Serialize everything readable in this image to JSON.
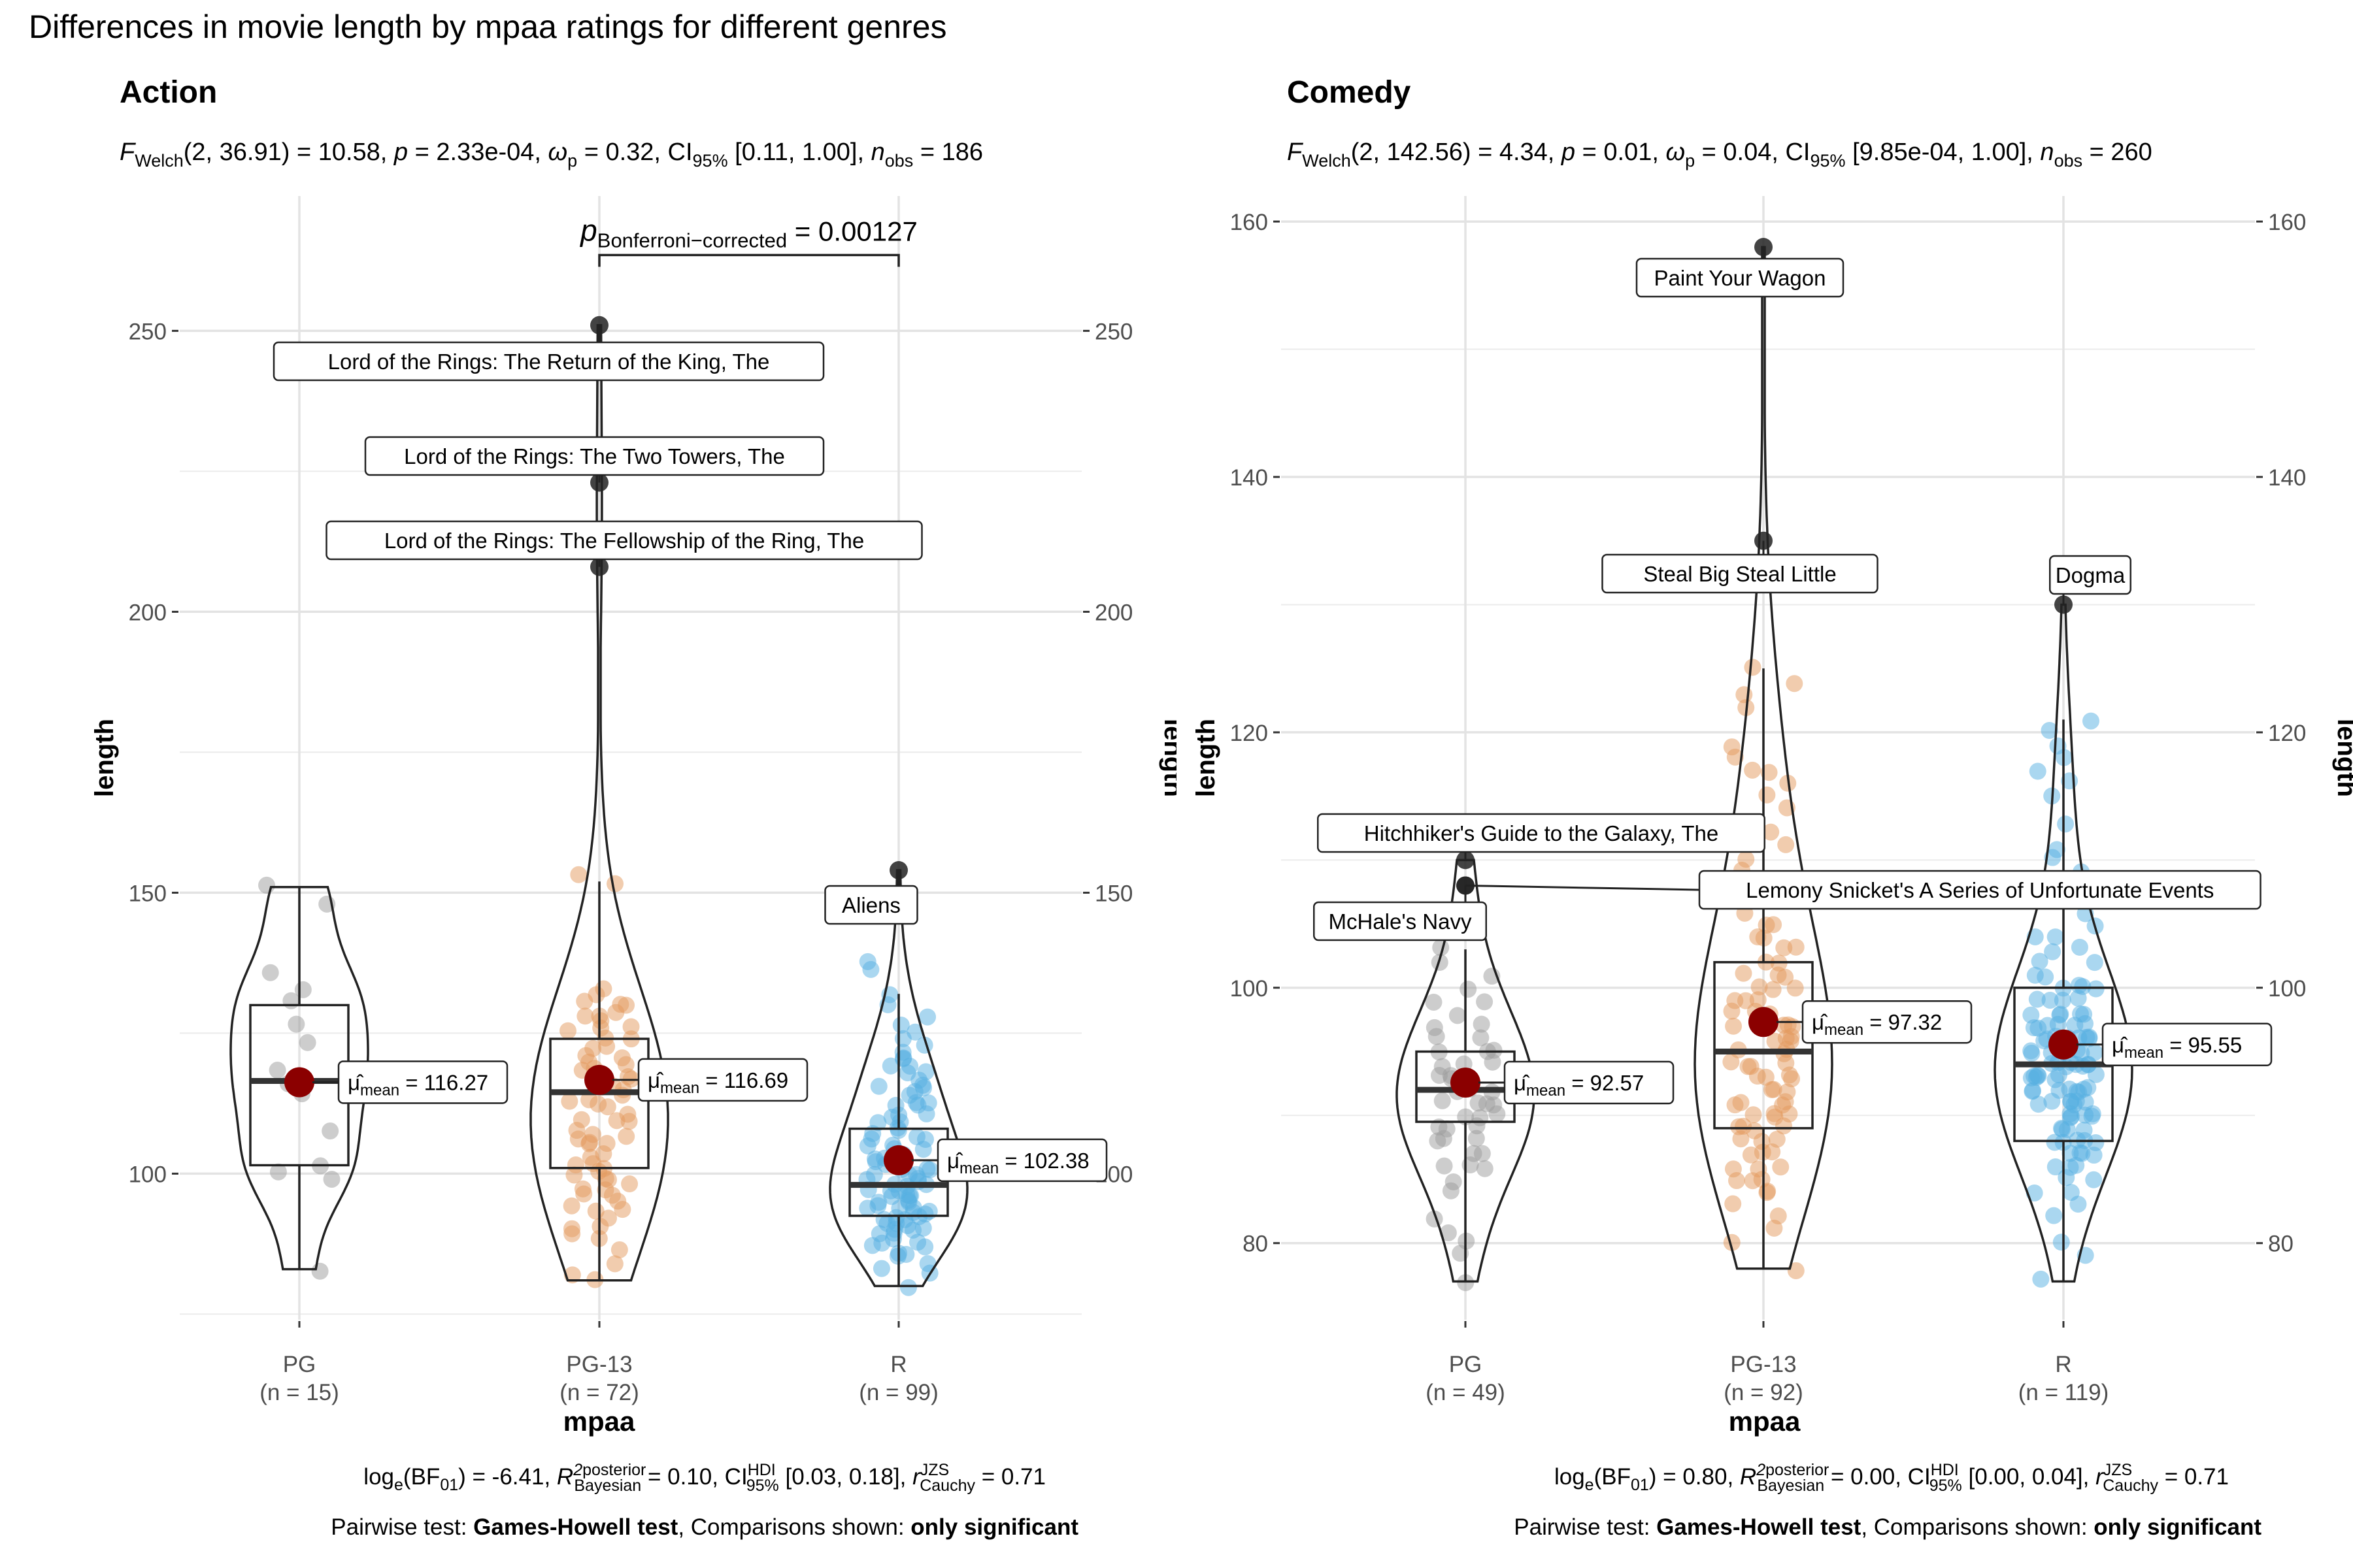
{
  "title": "Differences in movie length by mpaa ratings for different genres",
  "colors": {
    "PG": "#9b9b9b",
    "PG-13": "#e39a5e",
    "R": "#56b0e2",
    "mean": "#8b0000"
  },
  "chart_data": [
    {
      "type": "violin-box",
      "genre": "Action",
      "subtitle": {
        "lead": "F",
        "lead_sub": "Welch",
        "args": "(2, 36.91) = 10.58, ",
        "p_label": "p",
        "p_value": " = 2.33e-04, ",
        "omega": "ω",
        "omega_sub": "p",
        "omega_value": " = 0.32, CI",
        "ci_sub": "95%",
        "ci_value": " [0.11, 1.00], ",
        "nobs": "n",
        "nobs_sub": "obs",
        "nobs_value": " = 186"
      },
      "xlabel": "mpaa",
      "ylabel": "length",
      "ylim": [
        74,
        274
      ],
      "yticks": [
        100,
        150,
        200,
        250
      ],
      "groups": [
        {
          "name": "PG",
          "n_label": "(n = 15)",
          "mean": 116.27,
          "mean_label": "116.27",
          "q1": 101.5,
          "median": 116.5,
          "q3": 130,
          "whisker_low": 83,
          "whisker_high": 151,
          "violin_min": 83,
          "violin_max": 151,
          "points": [
            151,
            148,
            136,
            133,
            131,
            127,
            123,
            118,
            116,
            114,
            108,
            101,
            100,
            99,
            83
          ]
        },
        {
          "name": "PG-13",
          "n_label": "(n = 72)",
          "mean": 116.69,
          "mean_label": "116.69",
          "q1": 101,
          "median": 114.5,
          "q3": 124,
          "whisker_low": 81,
          "whisker_high": 152,
          "violin_min": 81,
          "violin_max": 251,
          "points": [
            153,
            152,
            133,
            132,
            131,
            130,
            129,
            128,
            127,
            126,
            125,
            124,
            123,
            122,
            121,
            120,
            119,
            118,
            117,
            116,
            115,
            114,
            113,
            112,
            111,
            110,
            109,
            108,
            107,
            106,
            105,
            104,
            103,
            102,
            101,
            100,
            99,
            98,
            97,
            96,
            95,
            94,
            92,
            90,
            88,
            86,
            84,
            82,
            81,
            126,
            119,
            112,
            106,
            100,
            94,
            130,
            121,
            113,
            105,
            97,
            91,
            128,
            117,
            109,
            102,
            96,
            89,
            124,
            115,
            107,
            99,
            93
          ]
        },
        {
          "name": "R",
          "n_label": "(n = 99)",
          "mean": 102.38,
          "mean_label": "102.38",
          "q1": 92.5,
          "median": 98,
          "q3": 108,
          "whisker_low": 80,
          "whisker_high": 132,
          "violin_min": 80,
          "violin_max": 154,
          "points": [
            138,
            136,
            132,
            130,
            128,
            126,
            124,
            122,
            121,
            120,
            119,
            118,
            117,
            116,
            115,
            114,
            113,
            112,
            111,
            110,
            109,
            108,
            107,
            106,
            105,
            104,
            103,
            102,
            101,
            100,
            99,
            98,
            97,
            96,
            95,
            94,
            93,
            92,
            91,
            90,
            89,
            88,
            87,
            86,
            85,
            84,
            83,
            82,
            80,
            125,
            118,
            110,
            104,
            100,
            97,
            95,
            93,
            91,
            89,
            87,
            123,
            115,
            108,
            103,
            99,
            96,
            94,
            92,
            90,
            88,
            86,
            119,
            112,
            106,
            102,
            98,
            96,
            94,
            92,
            90,
            88,
            116,
            109,
            105,
            101,
            99,
            97,
            95,
            93,
            91,
            113,
            107,
            103,
            100,
            98,
            96,
            94,
            92,
            101
          ]
        }
      ],
      "outliers": [
        {
          "group": "PG-13",
          "y": 251,
          "label": "Lord of the Rings: The Return of the King, The"
        },
        {
          "group": "PG-13",
          "y": 223,
          "label": "Lord of the Rings: The Two Towers, The"
        },
        {
          "group": "PG-13",
          "y": 208,
          "label": "Lord of the Rings: The Fellowship of the Ring, The"
        },
        {
          "group": "R",
          "y": 154,
          "label": "Aliens"
        }
      ],
      "pairwise": {
        "from": "PG-13",
        "to": "R",
        "y": 265,
        "label_p": "p",
        "label_sub": "Bonferroni−corrected",
        "label_value": " = 0.00127"
      },
      "footer": {
        "bf_lead": "log",
        "bf_lead_sub": "e",
        "bf_text": "(BF",
        "bf_sub": "01",
        "bf_value": ") = -6.41, ",
        "r2": "R",
        "r2_sup": "2",
        "r2_sup_text": "posterior",
        "r2_sub": "Bayesian",
        "r2_value": " = 0.10, CI",
        "ci_sup": "HDI",
        "ci_sub": "95%",
        "ci_value": " [0.03, 0.18], ",
        "r": "r",
        "r_sup": "JZS",
        "r_sub": "Cauchy",
        "r_value": " = 0.71",
        "pairwise_prefix": "Pairwise test: ",
        "pairwise_test": "Games-Howell test",
        "pairwise_mid": ", Comparisons shown: ",
        "pairwise_shown": "only significant"
      }
    },
    {
      "type": "violin-box",
      "genre": "Comedy",
      "subtitle": {
        "lead": "F",
        "lead_sub": "Welch",
        "args": "(2, 142.56) = 4.34, ",
        "p_label": "p",
        "p_value": " = 0.01, ",
        "omega": "ω",
        "omega_sub": "p",
        "omega_value": " = 0.04, CI",
        "ci_sub": "95%",
        "ci_value": " [9.85e-04, 1.00], ",
        "nobs": "n",
        "nobs_sub": "obs",
        "nobs_value": " = 260"
      },
      "xlabel": "mpaa",
      "ylabel": "length",
      "ylim": [
        74,
        162
      ],
      "yticks": [
        80,
        100,
        120,
        140,
        160
      ],
      "groups": [
        {
          "name": "PG",
          "n_label": "(n = 49)",
          "mean": 92.57,
          "mean_label": "92.57",
          "q1": 89.5,
          "median": 92,
          "q3": 95,
          "whisker_low": 77,
          "whisker_high": 103,
          "violin_min": 77,
          "violin_max": 110,
          "points": [
            103,
            102,
            101,
            100,
            99,
            98,
            97,
            96,
            95,
            95,
            94,
            94,
            93,
            93,
            92,
            92,
            91,
            91,
            90,
            90,
            89,
            89,
            88,
            88,
            87,
            87,
            86,
            86,
            85,
            84,
            82,
            81,
            80,
            79,
            77,
            96,
            93,
            91,
            89,
            94,
            92,
            90,
            88,
            95,
            93,
            91,
            97,
            99,
            86
          ]
        },
        {
          "name": "PG-13",
          "n_label": "(n = 92)",
          "mean": 97.32,
          "mean_label": "97.32",
          "q1": 89,
          "median": 95,
          "q3": 102,
          "whisker_low": 78,
          "whisker_high": 125,
          "violin_min": 78,
          "violin_max": 158,
          "points": [
            125,
            124,
            123,
            122,
            119,
            118,
            117,
            116,
            115,
            113,
            112,
            110,
            108,
            107,
            106,
            105,
            104,
            103,
            102,
            101,
            100,
            99,
            98,
            97,
            96,
            95,
            94,
            93,
            92,
            91,
            90,
            89,
            88,
            87,
            86,
            85,
            84,
            83,
            82,
            81,
            80,
            78,
            117,
            114,
            111,
            109,
            104,
            101,
            99,
            97,
            95,
            93,
            91,
            89,
            87,
            85,
            102,
            100,
            98,
            96,
            94,
            92,
            90,
            88,
            86,
            84,
            103,
            99,
            96,
            93,
            90,
            87,
            85,
            101,
            97,
            94,
            91,
            89,
            86,
            105,
            98,
            95,
            92,
            90,
            88,
            100,
            96,
            93,
            91,
            89,
            97,
            94
          ]
        },
        {
          "name": "R",
          "n_label": "(n = 119)",
          "mean": 95.55,
          "mean_label": "95.55",
          "q1": 88,
          "median": 94,
          "q3": 100,
          "whisker_low": 77,
          "whisker_high": 121,
          "violin_min": 77,
          "violin_max": 130,
          "points": [
            121,
            120,
            119,
            118,
            117,
            116,
            115,
            113,
            111,
            110,
            109,
            108,
            107,
            106,
            105,
            104,
            103,
            102,
            101,
            100,
            99,
            98,
            97,
            96,
            95,
            94,
            93,
            92,
            91,
            90,
            89,
            88,
            87,
            86,
            85,
            84,
            83,
            82,
            80,
            79,
            77,
            103,
            100,
            98,
            96,
            94,
            92,
            90,
            88,
            86,
            101,
            99,
            97,
            95,
            93,
            91,
            89,
            87,
            85,
            104,
            98,
            96,
            94,
            92,
            90,
            88,
            86,
            84,
            102,
            100,
            97,
            95,
            93,
            91,
            89,
            87,
            99,
            97,
            95,
            93,
            91,
            89,
            87,
            100,
            98,
            96,
            94,
            92,
            90,
            88,
            96,
            94,
            92,
            90,
            97,
            95,
            93,
            91,
            98,
            96,
            94,
            92,
            95,
            93,
            91,
            96,
            94,
            92,
            97,
            95,
            93,
            91,
            99,
            94,
            90,
            88,
            92,
            96,
            93
          ]
        }
      ],
      "outliers": [
        {
          "group": "PG",
          "y": 110,
          "label": "Hitchhiker's Guide to the Galaxy, The"
        },
        {
          "group": "PG",
          "y": 108,
          "label": "Lemony Snicket's A Series of Unfortunate Events"
        },
        {
          "group": "PG",
          "y": 108,
          "label": "McHale's Navy"
        },
        {
          "group": "PG-13",
          "y": 158,
          "label": "Paint Your Wagon"
        },
        {
          "group": "PG-13",
          "y": 135,
          "label": "Steal Big Steal Little"
        },
        {
          "group": "R",
          "y": 130,
          "label": "Dogma"
        }
      ],
      "footer": {
        "bf_lead": "log",
        "bf_lead_sub": "e",
        "bf_text": "(BF",
        "bf_sub": "01",
        "bf_value": ") = 0.80, ",
        "r2": "R",
        "r2_sup": "2",
        "r2_sup_text": "posterior",
        "r2_sub": "Bayesian",
        "r2_value": " = 0.00, CI",
        "ci_sup": "HDI",
        "ci_sub": "95%",
        "ci_value": " [0.00, 0.04], ",
        "r": "r",
        "r_sup": "JZS",
        "r_sub": "Cauchy",
        "r_value": " = 0.71",
        "pairwise_prefix": "Pairwise test: ",
        "pairwise_test": "Games-Howell test",
        "pairwise_mid": ", Comparisons shown: ",
        "pairwise_shown": "only significant"
      }
    }
  ]
}
